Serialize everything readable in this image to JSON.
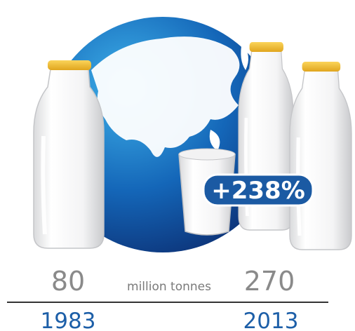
{
  "infographic": {
    "before": {
      "amount": 80,
      "year": 1983
    },
    "unit": "million tonnes",
    "after": {
      "amount": 270,
      "year": 2013
    },
    "change": "+238%"
  }
}
